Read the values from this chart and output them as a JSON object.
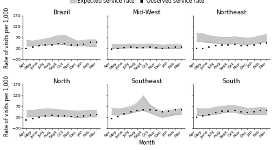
{
  "panels": [
    "Brazil",
    "Mid-West",
    "Northeast",
    "North",
    "Southeast",
    "South"
  ],
  "months": [
    "Apr",
    "May",
    "June",
    "July",
    "Aug",
    "Sept",
    "Oct",
    "Nov",
    "Dec",
    "Jan",
    "Feb",
    "Mar"
  ],
  "ylim": [
    -30,
    170
  ],
  "yticks": [
    -30,
    20,
    70,
    120,
    170
  ],
  "ylabel": "Rate of visits per 1,000",
  "xlabel": "Month",
  "legend_items": [
    "Expected service rate",
    "Observed service rate"
  ],
  "fill_color": "#c8c8c8",
  "line_color": "#999999",
  "observed_color": "#111111",
  "expected_upper": {
    "Brazil": [
      58,
      55,
      60,
      65,
      72,
      80,
      82,
      68,
      55,
      58,
      62,
      60
    ],
    "Mid-West": [
      42,
      38,
      40,
      42,
      40,
      40,
      42,
      40,
      36,
      38,
      40,
      40
    ],
    "Northeast": [
      92,
      88,
      80,
      75,
      73,
      73,
      75,
      72,
      68,
      72,
      80,
      85
    ],
    "North": [
      52,
      52,
      55,
      58,
      57,
      54,
      53,
      50,
      48,
      50,
      52,
      53
    ],
    "Southeast": [
      62,
      58,
      62,
      68,
      85,
      118,
      78,
      58,
      45,
      52,
      55,
      60
    ],
    "South": [
      62,
      58,
      60,
      65,
      70,
      73,
      73,
      67,
      60,
      62,
      64,
      62
    ]
  },
  "expected_lower": {
    "Brazil": [
      32,
      33,
      36,
      36,
      38,
      40,
      38,
      33,
      32,
      32,
      30,
      30
    ],
    "Mid-West": [
      20,
      20,
      22,
      24,
      22,
      22,
      24,
      20,
      19,
      20,
      20,
      20
    ],
    "Northeast": [
      55,
      50,
      48,
      45,
      42,
      40,
      42,
      40,
      38,
      42,
      48,
      50
    ],
    "North": [
      20,
      20,
      22,
      24,
      24,
      22,
      22,
      20,
      17,
      19,
      20,
      20
    ],
    "Southeast": [
      32,
      28,
      32,
      38,
      45,
      50,
      40,
      28,
      18,
      25,
      30,
      32
    ],
    "South": [
      28,
      25,
      28,
      32,
      38,
      42,
      42,
      35,
      30,
      30,
      32,
      30
    ]
  },
  "observed": {
    "Brazil": [
      20,
      27,
      32,
      36,
      38,
      42,
      44,
      38,
      36,
      40,
      48,
      48
    ],
    "Mid-West": [
      18,
      20,
      25,
      28,
      25,
      25,
      27,
      25,
      22,
      25,
      27,
      27
    ],
    "Northeast": [
      20,
      22,
      26,
      32,
      36,
      38,
      40,
      35,
      32,
      37,
      42,
      45
    ],
    "North": [
      8,
      12,
      20,
      26,
      28,
      26,
      26,
      22,
      22,
      24,
      30,
      32
    ],
    "Southeast": [
      13,
      22,
      35,
      45,
      50,
      52,
      52,
      50,
      45,
      48,
      52,
      55
    ],
    "South": [
      18,
      25,
      32,
      40,
      46,
      48,
      50,
      45,
      42,
      45,
      50,
      50
    ]
  },
  "background_color": "#ffffff",
  "title_fontsize": 6.5,
  "tick_fontsize": 4.5,
  "label_fontsize": 5.5,
  "legend_fontsize": 5.5
}
